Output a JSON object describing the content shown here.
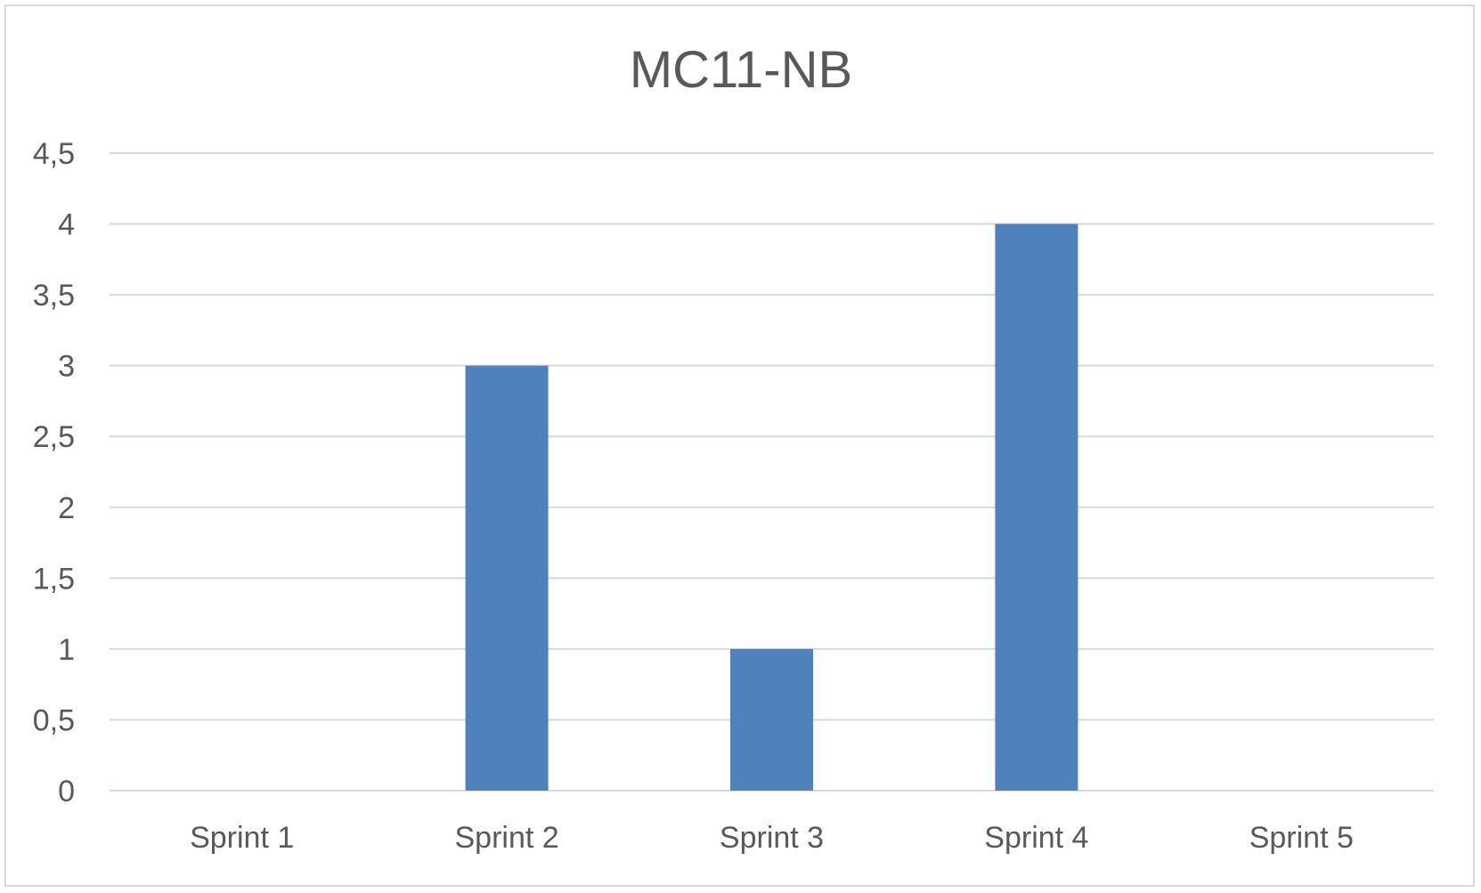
{
  "chart_data": {
    "type": "bar",
    "title": "MC11-NB",
    "xlabel": "",
    "ylabel": "",
    "categories": [
      "Sprint 1",
      "Sprint 2",
      "Sprint 3",
      "Sprint 4",
      "Sprint 5"
    ],
    "values": [
      0,
      3,
      1,
      4,
      0
    ],
    "y_tick_labels": [
      "0",
      "0,5",
      "1",
      "1,5",
      "2",
      "2,5",
      "3",
      "3,5",
      "4",
      "4,5"
    ],
    "ylim": [
      0,
      4.5
    ],
    "grid": true,
    "legend": "none",
    "bar_color": "#4f81bd"
  }
}
